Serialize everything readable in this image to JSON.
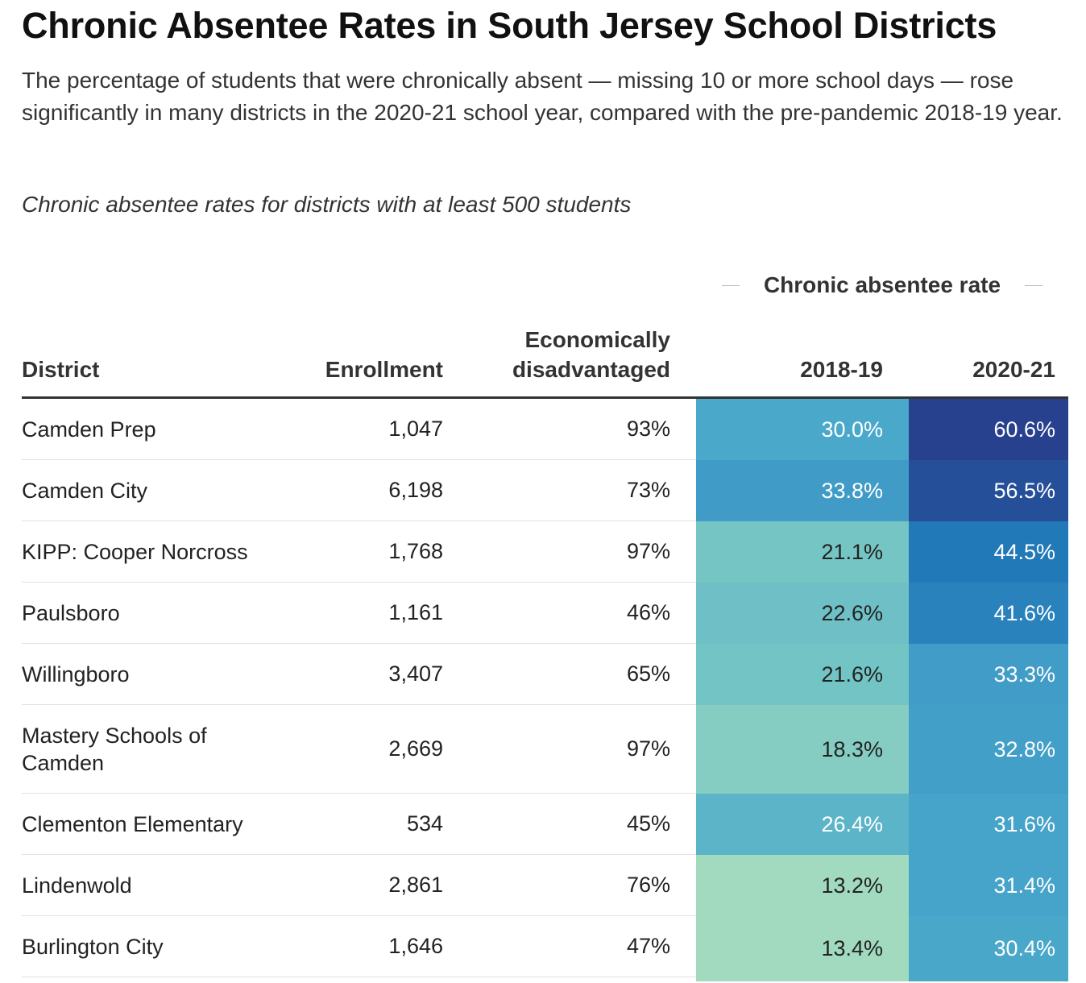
{
  "title": "Chronic Absentee Rates in South Jersey School Districts",
  "subtitle": "The percentage of students that were chronically absent — missing 10 or more school days — rose significantly in many districts in the 2020-21 school year, compared with the pre-pandemic 2018-19 year.",
  "note": "Chronic absentee rates for districts with at least 500 students",
  "group_header": "Chronic absentee rate",
  "columns": {
    "district": "District",
    "enrollment": "Enrollment",
    "econ_line1": "Economically",
    "econ_line2": "disadvantaged",
    "y2018": "2018-19",
    "y2020": "2020-21"
  },
  "chart_data": {
    "type": "table",
    "title": "Chronic Absentee Rates in South Jersey School Districts",
    "columns": [
      "District",
      "Enrollment",
      "Economically disadvantaged",
      "2018-19",
      "2020-21"
    ],
    "rows": [
      {
        "district": "Camden Prep",
        "enrollment": "1,047",
        "econ": "93%",
        "y2018": "30.0%",
        "y2020": "60.6%",
        "v2018": 30.0,
        "v2020": 60.6
      },
      {
        "district": "Camden City",
        "enrollment": "6,198",
        "econ": "73%",
        "y2018": "33.8%",
        "y2020": "56.5%",
        "v2018": 33.8,
        "v2020": 56.5
      },
      {
        "district": "KIPP: Cooper Norcross",
        "enrollment": "1,768",
        "econ": "97%",
        "y2018": "21.1%",
        "y2020": "44.5%",
        "v2018": 21.1,
        "v2020": 44.5
      },
      {
        "district": "Paulsboro",
        "enrollment": "1,161",
        "econ": "46%",
        "y2018": "22.6%",
        "y2020": "41.6%",
        "v2018": 22.6,
        "v2020": 41.6
      },
      {
        "district": "Willingboro",
        "enrollment": "3,407",
        "econ": "65%",
        "y2018": "21.6%",
        "y2020": "33.3%",
        "v2018": 21.6,
        "v2020": 33.3
      },
      {
        "district": "Mastery Schools of Camden",
        "enrollment": "2,669",
        "econ": "97%",
        "y2018": "18.3%",
        "y2020": "32.8%",
        "v2018": 18.3,
        "v2020": 32.8
      },
      {
        "district": "Clementon Elementary",
        "enrollment": "534",
        "econ": "45%",
        "y2018": "26.4%",
        "y2020": "31.6%",
        "v2018": 26.4,
        "v2020": 31.6
      },
      {
        "district": "Lindenwold",
        "enrollment": "2,861",
        "econ": "76%",
        "y2018": "13.2%",
        "y2020": "31.4%",
        "v2018": 13.2,
        "v2020": 31.4
      },
      {
        "district": "Burlington City",
        "enrollment": "1,646",
        "econ": "47%",
        "y2018": "13.4%",
        "y2020": "30.4%",
        "v2018": 13.4,
        "v2020": 30.4
      }
    ],
    "color_scale": {
      "stops": [
        {
          "value": 10,
          "color": "#b4e2bc"
        },
        {
          "value": 20,
          "color": "#7bc9c4"
        },
        {
          "value": 30,
          "color": "#4aa8cb"
        },
        {
          "value": 45,
          "color": "#2177b7"
        },
        {
          "value": 61,
          "color": "#27408d"
        }
      ],
      "text_dark_below": 25,
      "text_dark": "#222222",
      "text_light": "#ffffff"
    }
  }
}
